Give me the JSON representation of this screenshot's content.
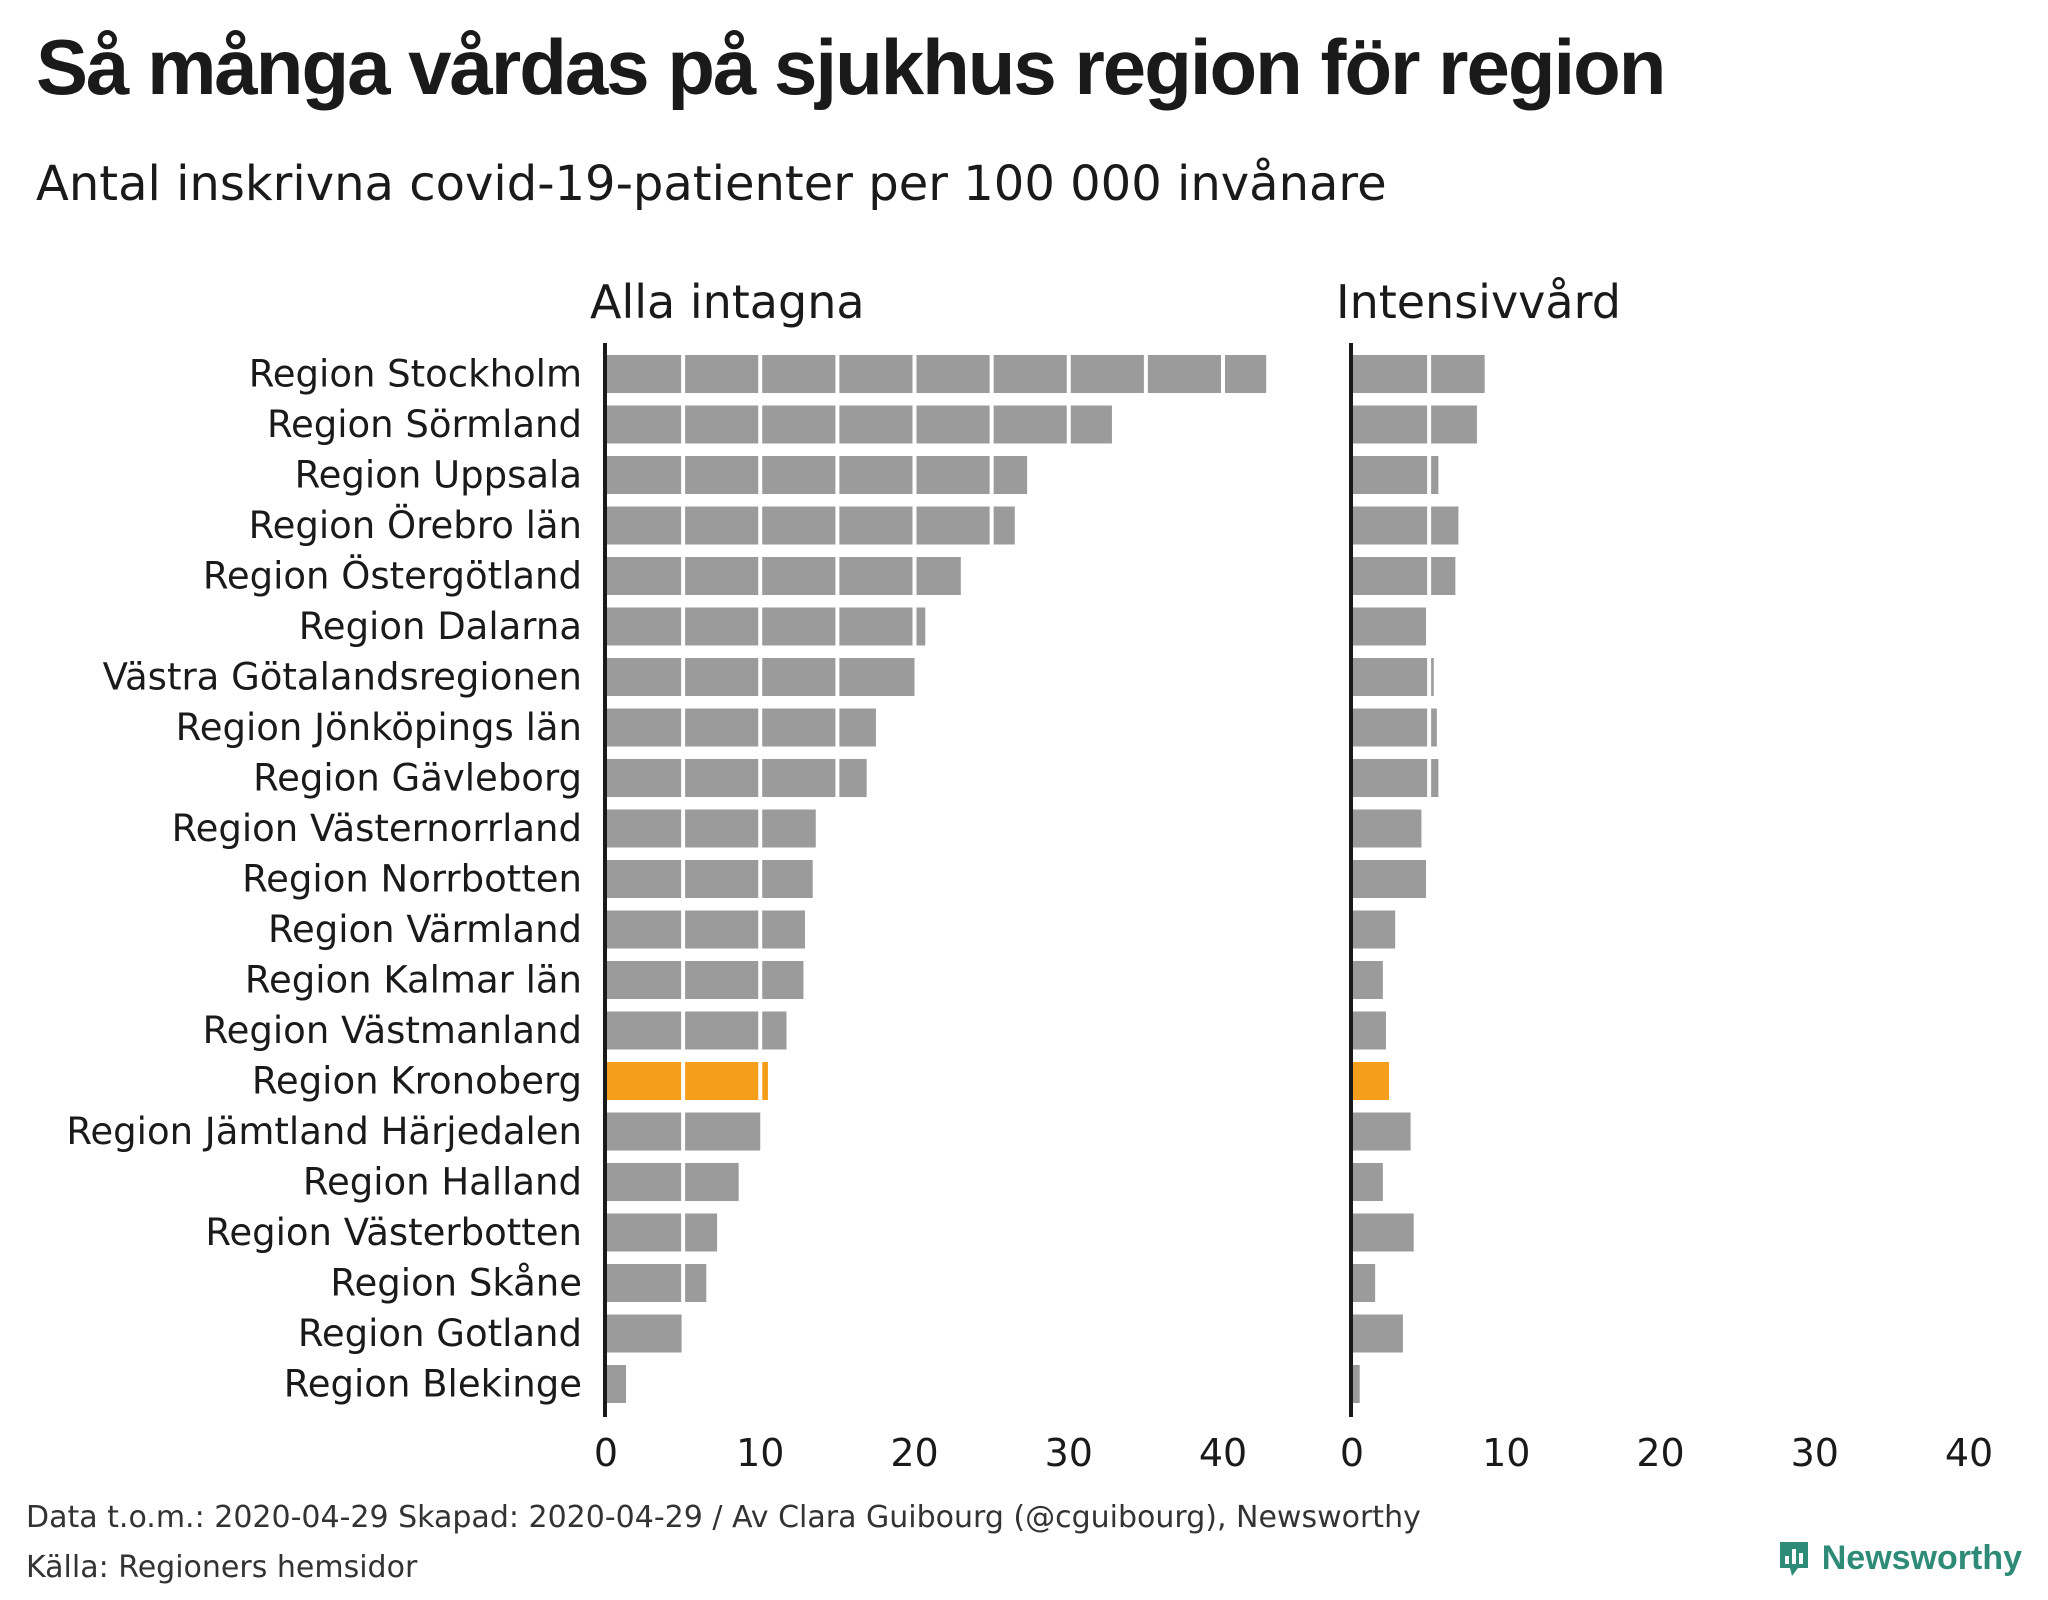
{
  "title": "Så många vårdas på sjukhus region för region",
  "subtitle": "Antal inskrivna covid-19-patienter per 100 000 invånare",
  "footer": {
    "line1": "Data t.o.m.: 2020-04-29 Skapad: 2020-04-29 / Av Clara Guibourg (@cguibourg), Newsworthy",
    "line2": "Källa: Regioners hemsidor"
  },
  "logo": {
    "text": "Newsworthy",
    "icon": "newsworthy-bar-icon"
  },
  "colors": {
    "bar": "#9b9b9b",
    "highlight": "#f59e1b",
    "axis": "#1a1a1a",
    "logo": "#2e8b78"
  },
  "chart_data": {
    "type": "bar",
    "orientation": "horizontal",
    "categories": [
      "Region Stockholm",
      "Region Sörmland",
      "Region Uppsala",
      "Region Örebro län",
      "Region Östergötland",
      "Region Dalarna",
      "Västra Götalandsregionen",
      "Region Jönköpings län",
      "Region Gävleborg",
      "Region Västernorrland",
      "Region Norrbotten",
      "Region Värmland",
      "Region Kalmar län",
      "Region Västmanland",
      "Region Kronoberg",
      "Region Jämtland Härjedalen",
      "Region Halland",
      "Region Västerbotten",
      "Region Skåne",
      "Region Gotland",
      "Region Blekinge"
    ],
    "highlight": "Region Kronoberg",
    "segment_size": 5,
    "xlim": [
      0,
      40
    ],
    "xticks": [
      0,
      10,
      20,
      30,
      40
    ],
    "panels": [
      {
        "title": "Alla intagna",
        "values": [
          42.8,
          32.8,
          27.3,
          26.5,
          23.0,
          20.7,
          20.0,
          17.5,
          16.9,
          13.6,
          13.4,
          12.9,
          12.8,
          11.7,
          10.5,
          10.0,
          8.6,
          7.2,
          6.5,
          4.9,
          1.3
        ]
      },
      {
        "title": "Intensivvård",
        "values": [
          8.6,
          8.1,
          5.6,
          6.9,
          6.7,
          4.8,
          5.3,
          5.5,
          5.6,
          4.5,
          4.8,
          2.8,
          2.0,
          2.2,
          2.4,
          3.8,
          2.0,
          4.0,
          1.5,
          3.3,
          0.5
        ]
      }
    ]
  }
}
